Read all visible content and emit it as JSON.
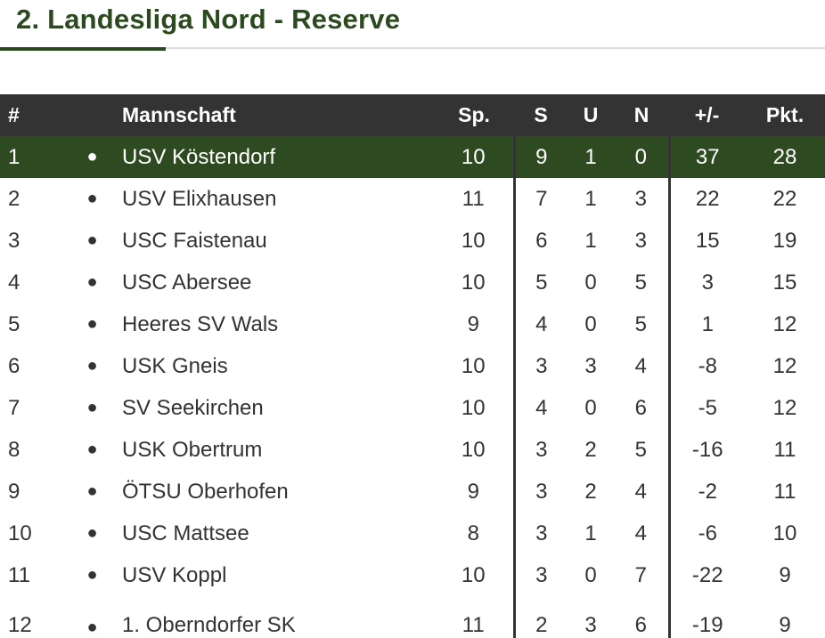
{
  "header": {
    "title": "2. Landesliga Nord - Reserve"
  },
  "columns": {
    "rank": "#",
    "team": "Mannschaft",
    "played": "Sp.",
    "wins": "S",
    "draws": "U",
    "losses": "N",
    "diff": "+/-",
    "points": "Pkt."
  },
  "colors": {
    "brand_green": "#2b4a1f",
    "leader_row": "#2e4a20",
    "header_bg": "#333333"
  },
  "icons": {
    "row_marker": "●"
  },
  "rows": [
    {
      "rank": "1",
      "team": "USV Köstendorf",
      "played": "10",
      "wins": "9",
      "draws": "1",
      "losses": "0",
      "diff": "37",
      "points": "28"
    },
    {
      "rank": "2",
      "team": "USV Elixhausen",
      "played": "11",
      "wins": "7",
      "draws": "1",
      "losses": "3",
      "diff": "22",
      "points": "22"
    },
    {
      "rank": "3",
      "team": "USC Faistenau",
      "played": "10",
      "wins": "6",
      "draws": "1",
      "losses": "3",
      "diff": "15",
      "points": "19"
    },
    {
      "rank": "4",
      "team": "USC Abersee",
      "played": "10",
      "wins": "5",
      "draws": "0",
      "losses": "5",
      "diff": "3",
      "points": "15"
    },
    {
      "rank": "5",
      "team": "Heeres SV Wals",
      "played": "9",
      "wins": "4",
      "draws": "0",
      "losses": "5",
      "diff": "1",
      "points": "12"
    },
    {
      "rank": "6",
      "team": "USK Gneis",
      "played": "10",
      "wins": "3",
      "draws": "3",
      "losses": "4",
      "diff": "-8",
      "points": "12"
    },
    {
      "rank": "7",
      "team": "SV Seekirchen",
      "played": "10",
      "wins": "4",
      "draws": "0",
      "losses": "6",
      "diff": "-5",
      "points": "12"
    },
    {
      "rank": "8",
      "team": "USK Obertrum",
      "played": "10",
      "wins": "3",
      "draws": "2",
      "losses": "5",
      "diff": "-16",
      "points": "11"
    },
    {
      "rank": "9",
      "team": "ÖTSU Oberhofen",
      "played": "9",
      "wins": "3",
      "draws": "2",
      "losses": "4",
      "diff": "-2",
      "points": "11"
    },
    {
      "rank": "10",
      "team": "USC Mattsee",
      "played": "8",
      "wins": "3",
      "draws": "1",
      "losses": "4",
      "diff": "-6",
      "points": "10"
    },
    {
      "rank": "11",
      "team": "USV Koppl",
      "played": "10",
      "wins": "3",
      "draws": "0",
      "losses": "7",
      "diff": "-22",
      "points": "9"
    },
    {
      "rank": "12",
      "team": "1. Oberndorfer SK",
      "played": "11",
      "wins": "2",
      "draws": "3",
      "losses": "6",
      "diff": "-19",
      "points": "9"
    }
  ]
}
